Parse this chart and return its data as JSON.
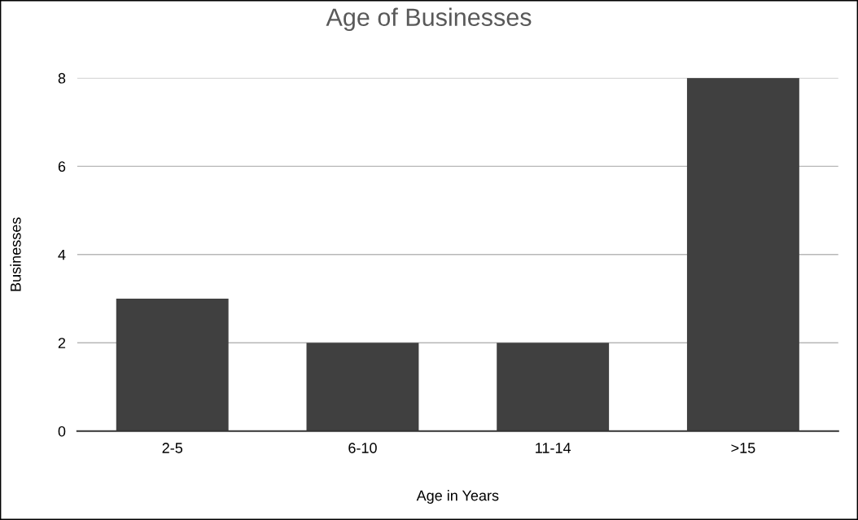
{
  "chart_data": {
    "type": "bar",
    "title": "Age of Businesses",
    "xlabel": "Age in Years",
    "ylabel": "Businesses",
    "categories": [
      "2-5",
      "6-10",
      "11-14",
      ">15"
    ],
    "values": [
      3,
      2,
      2,
      8
    ],
    "color": "#404040",
    "ylim": [
      0,
      8
    ],
    "yticks": [
      0,
      2,
      4,
      6,
      8
    ],
    "grid": "y",
    "legend": false
  }
}
